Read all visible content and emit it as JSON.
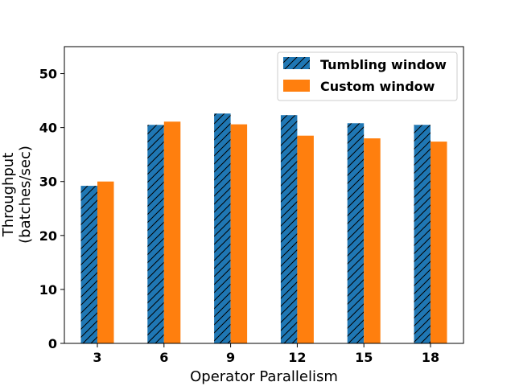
{
  "chart_data": {
    "type": "bar",
    "title": "",
    "xlabel": "Operator Parallelism",
    "ylabel_line1": "Throughput",
    "ylabel_line2": "(batches/sec)",
    "categories": [
      "3",
      "6",
      "9",
      "12",
      "15",
      "18"
    ],
    "series": [
      {
        "name": "Tumbling window",
        "values": [
          29.2,
          40.5,
          42.6,
          42.3,
          40.8,
          40.5
        ],
        "color": "#1f77b4",
        "pattern": "hatch"
      },
      {
        "name": "Custom window",
        "values": [
          30.0,
          41.1,
          40.6,
          38.5,
          38.0,
          37.4
        ],
        "color": "#ff7f0e",
        "pattern": "solid"
      }
    ],
    "ylim": [
      0,
      55
    ],
    "yticks": [
      0,
      10,
      20,
      30,
      40,
      50
    ],
    "grid": false,
    "legend_position": "top-right"
  }
}
